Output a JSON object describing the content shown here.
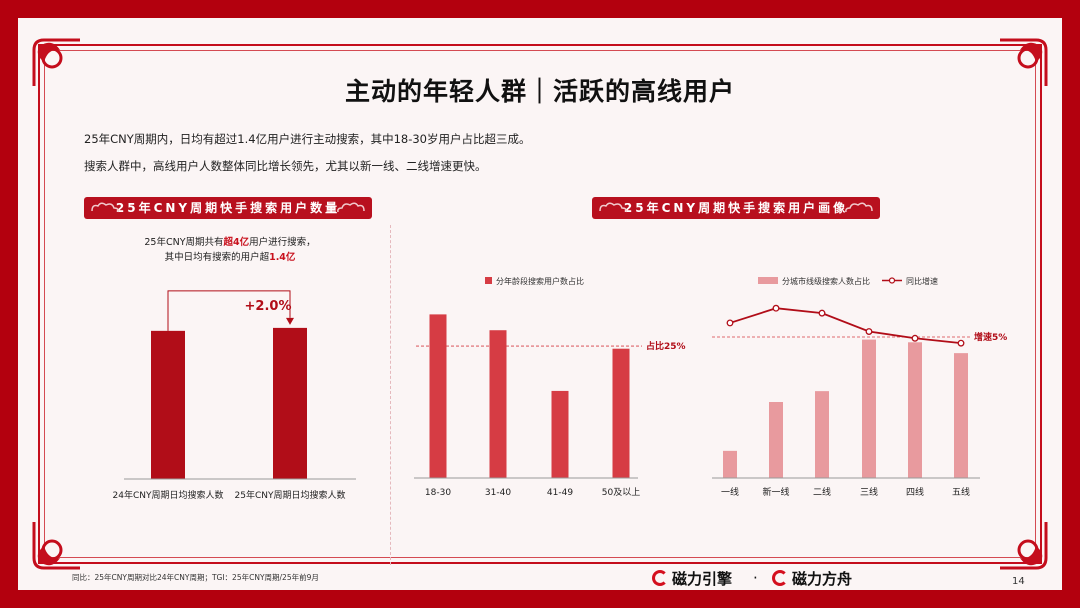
{
  "title": "主动的年轻人群｜活跃的高线用户",
  "desc1": "25年CNY周期内，日均有超过1.4亿用户进行主动搜索，其中18-30岁用户占比超三成。",
  "desc2": "搜索人群中，高线用户人数整体同比增长领先，尤其以新一线、二线增速更快。",
  "section_left": "25年CNY周期快手搜索用户数量",
  "section_right": "25年CNY周期快手搜索用户画像",
  "annotation_left": {
    "line1_pre": "25年CNY周期共有",
    "line1_hl": "超4亿",
    "line1_post": "用户进行搜索，",
    "line2_pre": "其中日均有搜索的用户超",
    "line2_hl": "1.4亿",
    "growth": "+2.0%"
  },
  "footnote": "同比：25年CNY周期对比24年CNY周期；TGI：25年CNY周期/25年前9月",
  "page_number": "14",
  "logo1": "磁力引擎",
  "logo_sep": "·",
  "logo2": "磁力方舟",
  "colors": {
    "bar_dark": "#b10d18",
    "bar_mid": "#d63c44",
    "bar_light": "#e89a9e",
    "line": "#b10d18",
    "border": "#b3000e"
  },
  "chart_data": [
    {
      "type": "bar",
      "categories": [
        "24年CNY周期日均搜索人数",
        "25年CNY周期日均搜索人数"
      ],
      "values": [
        100,
        102.0
      ],
      "ylim": [
        0,
        135
      ],
      "annotations": [
        "+2.0%"
      ]
    },
    {
      "type": "bar",
      "legend": "分年龄段搜索用户数占比",
      "categories": [
        "18-30",
        "31-40",
        "41-49",
        "50及以上"
      ],
      "values": [
        31,
        28,
        16.5,
        24.5
      ],
      "ylim": [
        0,
        36
      ],
      "reference_line": {
        "value": 25,
        "label": "占比25%"
      }
    },
    {
      "type": "bar+line",
      "categories": [
        "一线",
        "新一线",
        "二线",
        "三线",
        "四线",
        "五线"
      ],
      "series": [
        {
          "name": "分城市线级搜索人数占比",
          "type": "bar",
          "values": [
            5,
            14,
            16,
            25.5,
            25,
            23
          ]
        },
        {
          "name": "同比增速",
          "type": "line",
          "values": [
            7.3,
            9.7,
            8.9,
            5.9,
            4.8,
            4.0
          ]
        }
      ],
      "bar_ylim": [
        0,
        35
      ],
      "line_ylim": [
        -18,
        13
      ],
      "reference_line": {
        "value": 5,
        "label": "增速5%"
      }
    }
  ]
}
